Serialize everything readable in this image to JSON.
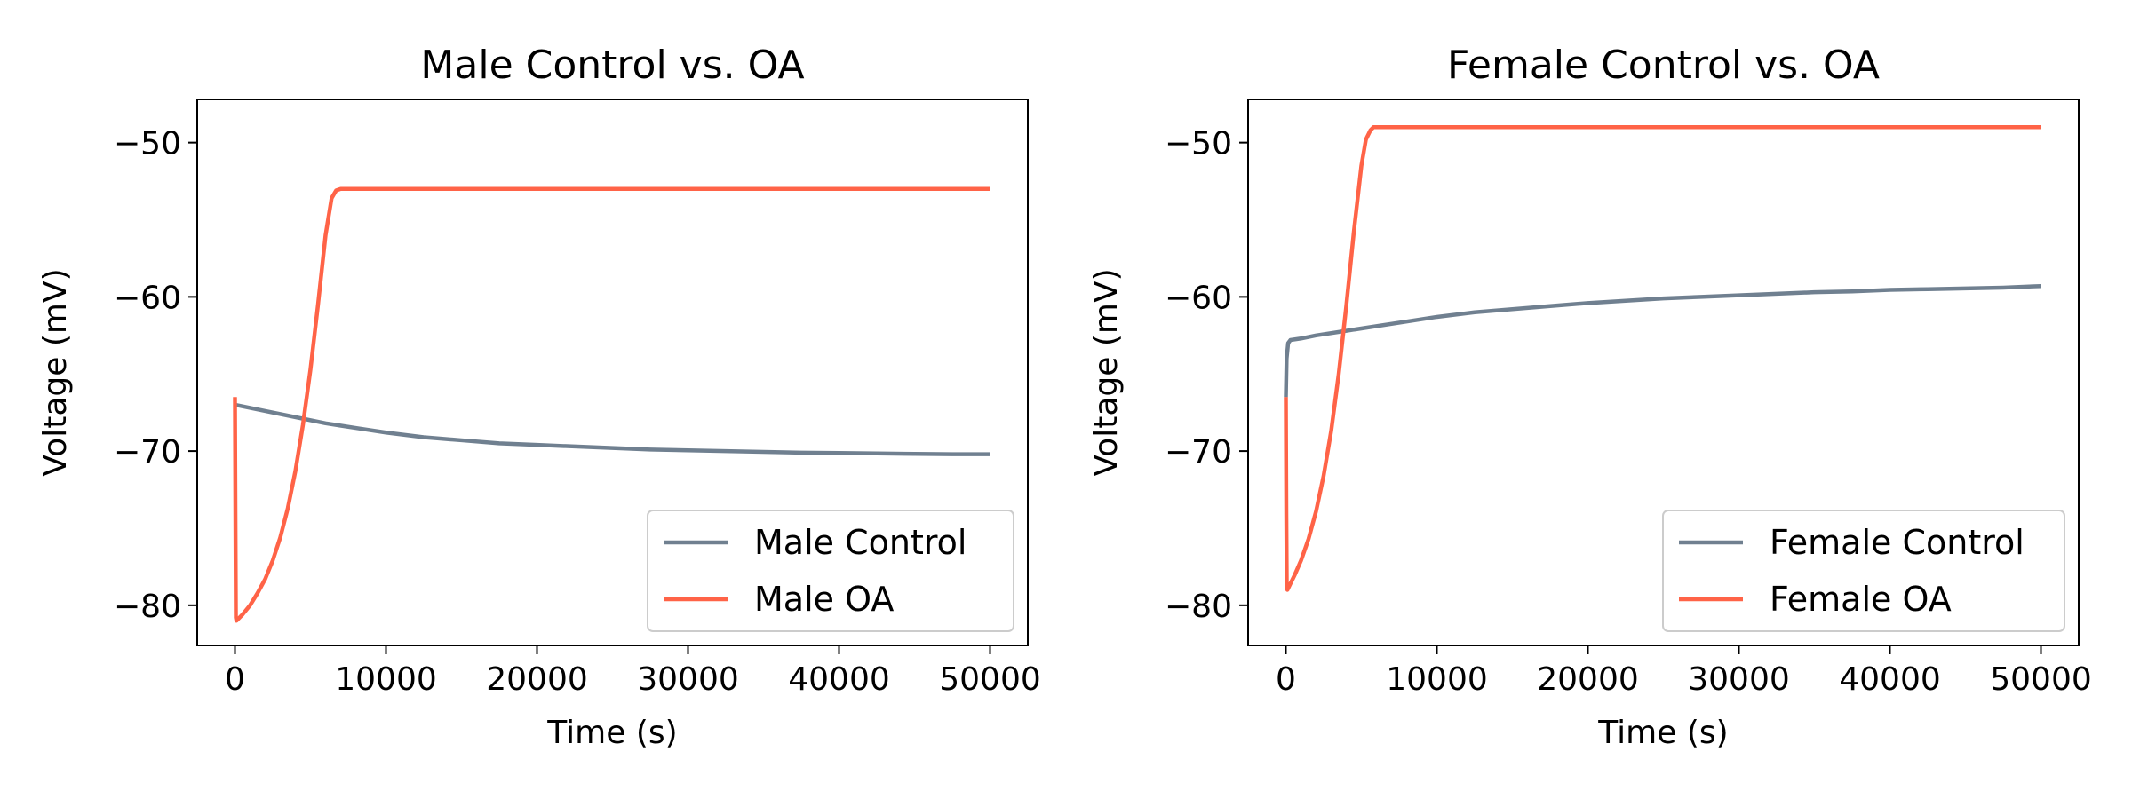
{
  "chart_data": [
    {
      "type": "line",
      "title": "Male Control vs. OA",
      "xlabel": "Time (s)",
      "ylabel": "Voltage (mV)",
      "xlim": [
        -2500,
        52500
      ],
      "ylim": [
        -82.6,
        -47.2
      ],
      "xticks": [
        0,
        10000,
        20000,
        30000,
        40000,
        50000
      ],
      "xtick_labels": [
        "0",
        "10000",
        "20000",
        "30000",
        "40000",
        "50000"
      ],
      "yticks": [
        -80,
        -70,
        -60,
        -50
      ],
      "ytick_labels": [
        "−80",
        "−70",
        "−60",
        "−50"
      ],
      "grid": false,
      "legend_position": "lower right",
      "series": [
        {
          "name": "Male Control",
          "color": "#708090",
          "x": [
            0,
            500,
            1000,
            2000,
            4000,
            6000,
            8000,
            10000,
            12500,
            15000,
            17500,
            20000,
            22500,
            25000,
            27500,
            30000,
            32500,
            35000,
            37500,
            40000,
            42500,
            45000,
            47500,
            50000
          ],
          "y": [
            -67.0,
            -67.1,
            -67.2,
            -67.4,
            -67.8,
            -68.2,
            -68.5,
            -68.8,
            -69.1,
            -69.3,
            -69.5,
            -69.6,
            -69.7,
            -69.8,
            -69.9,
            -69.95,
            -70.0,
            -70.05,
            -70.1,
            -70.12,
            -70.15,
            -70.18,
            -70.2,
            -70.2
          ]
        },
        {
          "name": "Male OA",
          "color": "#ff6347",
          "x": [
            0,
            30,
            60,
            100,
            200,
            500,
            1000,
            1500,
            2000,
            2500,
            3000,
            3500,
            4000,
            4500,
            5000,
            5500,
            6000,
            6400,
            6700,
            7000,
            7500,
            10000,
            20000,
            30000,
            40000,
            50000
          ],
          "y": [
            -66.5,
            -74.0,
            -80.8,
            -81.0,
            -80.9,
            -80.6,
            -80.0,
            -79.2,
            -78.3,
            -77.1,
            -75.6,
            -73.7,
            -71.3,
            -68.3,
            -64.7,
            -60.5,
            -56.0,
            -53.6,
            -53.1,
            -53.0,
            -53.0,
            -53.0,
            -53.0,
            -53.0,
            -53.0,
            -53.0
          ]
        }
      ]
    },
    {
      "type": "line",
      "title": "Female Control vs. OA",
      "xlabel": "Time (s)",
      "ylabel": "Voltage (mV)",
      "xlim": [
        -2500,
        52500
      ],
      "ylim": [
        -82.6,
        -47.2
      ],
      "xticks": [
        0,
        10000,
        20000,
        30000,
        40000,
        50000
      ],
      "xtick_labels": [
        "0",
        "10000",
        "20000",
        "30000",
        "40000",
        "50000"
      ],
      "yticks": [
        -80,
        -70,
        -60,
        -50
      ],
      "ytick_labels": [
        "−80",
        "−70",
        "−60",
        "−50"
      ],
      "grid": false,
      "legend_position": "lower right",
      "series": [
        {
          "name": "Female Control",
          "color": "#708090",
          "x": [
            0,
            50,
            150,
            300,
            1000,
            2000,
            4000,
            6000,
            8000,
            10000,
            12500,
            15000,
            17500,
            20000,
            22500,
            25000,
            27500,
            30000,
            32500,
            35000,
            37500,
            40000,
            42500,
            45000,
            47500,
            50000
          ],
          "y": [
            -66.5,
            -64.0,
            -63.0,
            -62.8,
            -62.7,
            -62.5,
            -62.2,
            -61.9,
            -61.6,
            -61.3,
            -61.0,
            -60.8,
            -60.6,
            -60.4,
            -60.25,
            -60.1,
            -60.0,
            -59.9,
            -59.8,
            -59.7,
            -59.65,
            -59.55,
            -59.5,
            -59.45,
            -59.4,
            -59.3
          ]
        },
        {
          "name": "Female OA",
          "color": "#ff6347",
          "x": [
            0,
            30,
            60,
            100,
            300,
            600,
            1000,
            1500,
            2000,
            2500,
            3000,
            3500,
            4000,
            4500,
            5000,
            5300,
            5600,
            5800,
            6000,
            6500,
            10000,
            20000,
            30000,
            40000,
            50000
          ],
          "y": [
            -66.5,
            -74.0,
            -78.9,
            -79.0,
            -78.6,
            -78.0,
            -77.1,
            -75.7,
            -73.9,
            -71.6,
            -68.7,
            -65.0,
            -60.6,
            -55.8,
            -51.5,
            -49.8,
            -49.2,
            -49.0,
            -49.0,
            -49.0,
            -49.0,
            -49.0,
            -49.0,
            -49.0,
            -49.0
          ]
        }
      ]
    }
  ]
}
